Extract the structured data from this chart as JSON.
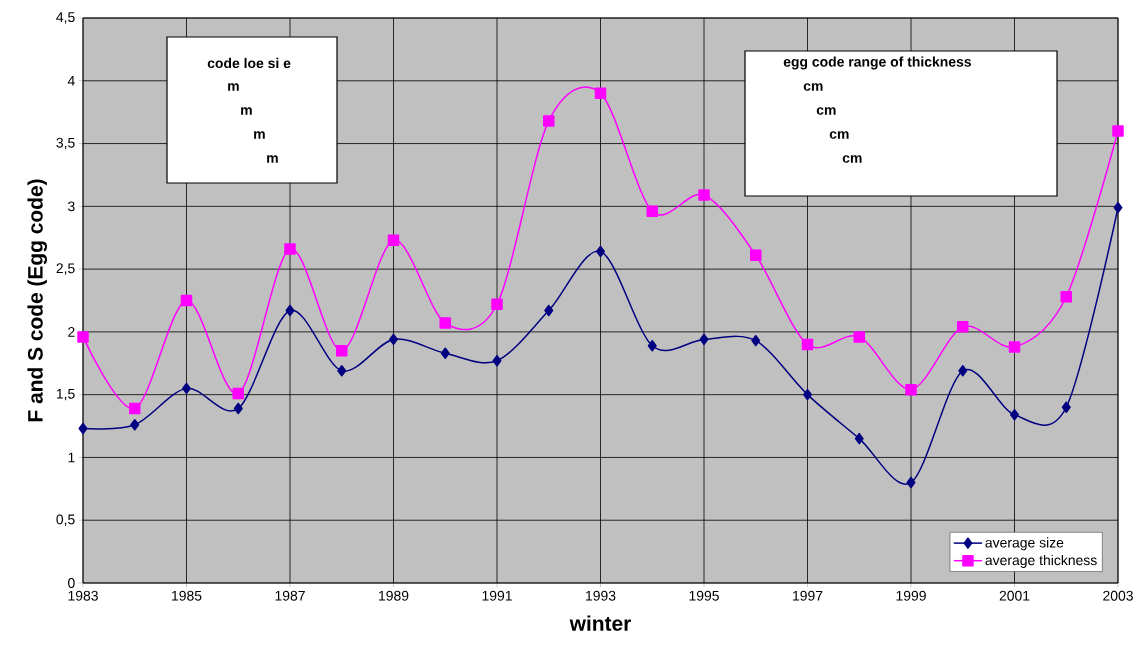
{
  "chart_data": {
    "type": "line",
    "xlabel": "winter",
    "ylabel": "F and S code (Egg code)",
    "x": [
      1983,
      1984,
      1985,
      1986,
      1987,
      1988,
      1989,
      1990,
      1991,
      1992,
      1993,
      1994,
      1995,
      1996,
      1997,
      1998,
      1999,
      2000,
      2001,
      2002,
      2003
    ],
    "series": [
      {
        "name": "average size",
        "color": "#000080",
        "marker": "diamond",
        "values": [
          1.23,
          1.26,
          1.55,
          1.39,
          2.17,
          1.69,
          1.94,
          1.83,
          1.77,
          2.17,
          2.64,
          1.89,
          1.94,
          1.93,
          1.5,
          1.15,
          0.8,
          1.69,
          1.34,
          1.4,
          2.99
        ]
      },
      {
        "name": "average thickness",
        "color": "#ff00ff",
        "marker": "square",
        "values": [
          1.96,
          1.39,
          2.25,
          1.51,
          2.66,
          1.85,
          2.73,
          2.07,
          2.22,
          3.68,
          3.9,
          2.96,
          3.09,
          2.61,
          1.9,
          1.96,
          1.54,
          2.04,
          1.88,
          2.28,
          3.6
        ]
      }
    ],
    "xlim": [
      1983,
      2003
    ],
    "ylim": [
      0,
      4.5
    ],
    "xticks": [
      1983,
      1985,
      1987,
      1989,
      1991,
      1993,
      1995,
      1997,
      1999,
      2001,
      2003
    ],
    "yticks": [
      0,
      {
        "value": 0.5,
        "label": "0,5"
      },
      1,
      {
        "value": 1.5,
        "label": "1,5"
      },
      2,
      {
        "value": 2.5,
        "label": "2,5"
      },
      3,
      {
        "value": 3.5,
        "label": "3,5"
      },
      4,
      {
        "value": 4.5,
        "label": "4,5"
      }
    ],
    "grid": true,
    "legend": "bottom right",
    "annotations": [
      "code     loe si  e",
      "m",
      "m",
      "m",
      "m",
      "egg code  range of thickness",
      "cm",
      "cm",
      "cm",
      "cm"
    ]
  }
}
